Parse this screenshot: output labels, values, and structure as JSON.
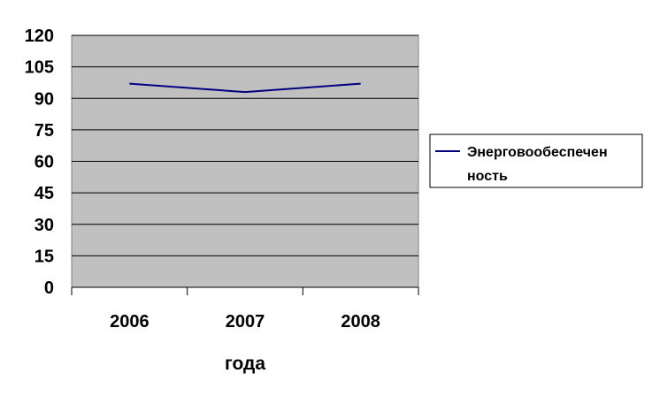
{
  "chart_data": {
    "type": "line",
    "categories": [
      "2006",
      "2007",
      "2008"
    ],
    "series": [
      {
        "name": "Энерговообеспеченность",
        "name_lines": [
          "Энерговообеспечен",
          "ность"
        ],
        "values": [
          97,
          93,
          97
        ],
        "color": "#000080"
      }
    ],
    "xlabel": "года",
    "ylabel": "",
    "ylim": [
      0,
      120
    ],
    "yticks": [
      0,
      15,
      30,
      45,
      60,
      75,
      90,
      105,
      120
    ],
    "grid": true,
    "legend": "right",
    "plot_background": "#c0c0c0"
  }
}
